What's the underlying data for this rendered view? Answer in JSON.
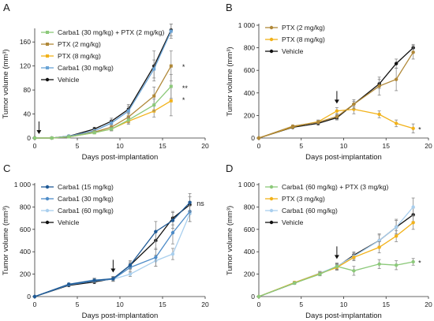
{
  "chart_data": [
    {
      "panel": "A",
      "type": "line",
      "xlabel": "Days post-implantation",
      "ylabel": "Tumor volume (mm³)",
      "xlim": [
        0,
        20
      ],
      "ylim": [
        0,
        180
      ],
      "x_ticks": [
        0,
        5,
        10,
        15,
        20
      ],
      "y_ticks": [
        0,
        40,
        80,
        120,
        160
      ],
      "y_tick_labels": [
        "0",
        "40",
        "80",
        "120",
        "160"
      ],
      "legend_position": "upper-left",
      "arrow_day": 0.5,
      "annotations": [
        {
          "text": "*",
          "x": 17.3,
          "y": 118
        },
        {
          "text": "**",
          "x": 17.3,
          "y": 83
        },
        {
          "text": "*",
          "x": 17.3,
          "y": 63
        }
      ],
      "series": [
        {
          "name": "Carba1 (30 mg/kg) + PTX (2 mg/kg)",
          "color": "#8cc97a",
          "marker": "square",
          "x": [
            0,
            2,
            4,
            7,
            9,
            11,
            14,
            16
          ],
          "y": [
            0,
            0,
            2,
            9,
            15,
            30,
            55,
            86
          ],
          "err": [
            0,
            0,
            1,
            2,
            3,
            5,
            10,
            20
          ]
        },
        {
          "name": "PTX (2 mg/kg)",
          "color": "#b08838",
          "marker": "square",
          "x": [
            0,
            2,
            4,
            7,
            9,
            11,
            14,
            16
          ],
          "y": [
            0,
            0,
            2,
            10,
            18,
            35,
            70,
            120
          ],
          "err": [
            0,
            0,
            1,
            2,
            4,
            7,
            15,
            25
          ]
        },
        {
          "name": "PTX (8 mg/kg)",
          "color": "#f2b21a",
          "marker": "square",
          "x": [
            0,
            2,
            4,
            7,
            9,
            11,
            14,
            16
          ],
          "y": [
            0,
            0,
            2,
            9,
            15,
            28,
            45,
            62
          ],
          "err": [
            0,
            0,
            1,
            2,
            3,
            5,
            10,
            25
          ]
        },
        {
          "name": "Carba1 (30 mg/kg)",
          "color": "#6aa3d5",
          "marker": "square",
          "x": [
            0,
            2,
            4,
            7,
            9,
            11,
            14,
            16
          ],
          "y": [
            0,
            0,
            3,
            12,
            25,
            45,
            115,
            178
          ],
          "err": [
            0,
            0,
            1,
            3,
            5,
            8,
            15,
            12
          ]
        },
        {
          "name": "Vehicle",
          "color": "#111111",
          "marker": "circle",
          "x": [
            0,
            2,
            4,
            7,
            9,
            11,
            14,
            16
          ],
          "y": [
            0,
            0,
            3,
            15,
            28,
            48,
            120,
            180
          ],
          "err": [
            0,
            0,
            1,
            3,
            5,
            8,
            25,
            10
          ]
        }
      ]
    },
    {
      "panel": "B",
      "type": "line",
      "xlabel": "Days post-implantation",
      "ylabel": "Tumor volume (mm³)",
      "xlim": [
        0,
        20
      ],
      "ylim": [
        0,
        1000
      ],
      "x_ticks": [
        0,
        5,
        10,
        15,
        20
      ],
      "y_ticks": [
        0,
        200,
        400,
        600,
        800,
        1000
      ],
      "y_tick_labels": [
        "0",
        "200",
        "400",
        "600",
        "800",
        "1 000"
      ],
      "legend_position": "upper-left",
      "arrow_day": 9.2,
      "annotations": [
        {
          "text": "*",
          "x": 18.8,
          "y": 75
        }
      ],
      "series": [
        {
          "name": "PTX (2 mg/kg)",
          "color": "#b08838",
          "marker": "circle",
          "x": [
            0,
            4,
            7,
            9.2,
            11.2,
            14.2,
            16.2,
            18.2
          ],
          "y": [
            0,
            105,
            140,
            190,
            300,
            460,
            520,
            760
          ],
          "err": [
            0,
            10,
            15,
            25,
            40,
            80,
            100,
            60
          ]
        },
        {
          "name": "PTX (8 mg/kg)",
          "color": "#f2b21a",
          "marker": "circle",
          "x": [
            0,
            4,
            7,
            9.2,
            11.2,
            14.2,
            16.2,
            18.2
          ],
          "y": [
            0,
            100,
            145,
            240,
            255,
            210,
            130,
            85
          ],
          "err": [
            0,
            10,
            15,
            30,
            40,
            30,
            30,
            40
          ]
        },
        {
          "name": "Vehicle",
          "color": "#111111",
          "marker": "circle",
          "x": [
            0,
            4,
            7,
            9.2,
            11.2,
            14.2,
            16.2,
            18.2
          ],
          "y": [
            0,
            95,
            130,
            180,
            300,
            480,
            660,
            800
          ],
          "err": [
            0,
            10,
            15,
            20,
            25,
            40,
            40,
            30
          ]
        }
      ]
    },
    {
      "panel": "C",
      "type": "line",
      "xlabel": "Days post-implantation",
      "ylabel": "Tumor volume (mm³)",
      "xlim": [
        0,
        20
      ],
      "ylim": [
        0,
        1000
      ],
      "x_ticks": [
        0,
        5,
        10,
        15,
        20
      ],
      "y_ticks": [
        0,
        200,
        400,
        600,
        800,
        1000
      ],
      "y_tick_labels": [
        "0",
        "200",
        "400",
        "600",
        "800",
        "1 000"
      ],
      "legend_position": "upper-left",
      "arrow_day": 9.2,
      "annotations": [
        {
          "text": "ns",
          "x": 19.0,
          "y": 830
        }
      ],
      "series": [
        {
          "name": "Carba1 (15 mg/kg)",
          "color": "#1f5a96",
          "marker": "circle",
          "x": [
            0,
            4,
            7,
            9.2,
            11.2,
            14.2,
            16.2,
            18.2
          ],
          "y": [
            0,
            110,
            145,
            160,
            280,
            580,
            680,
            840
          ],
          "err": [
            0,
            10,
            15,
            20,
            40,
            90,
            70,
            80
          ]
        },
        {
          "name": "Carba1 (30 mg/kg)",
          "color": "#4e8cc8",
          "marker": "circle",
          "x": [
            0,
            4,
            7,
            9.2,
            11.2,
            14.2,
            16.2,
            18.2
          ],
          "y": [
            0,
            105,
            140,
            155,
            260,
            350,
            570,
            760
          ],
          "err": [
            0,
            10,
            15,
            20,
            40,
            80,
            100,
            90
          ]
        },
        {
          "name": "Carba1 (60 mg/kg)",
          "color": "#a9cfee",
          "marker": "circle",
          "x": [
            0,
            4,
            7,
            9.2,
            11.2,
            14.2,
            16.2,
            18.2
          ],
          "y": [
            0,
            110,
            150,
            155,
            200,
            320,
            380,
            740
          ],
          "err": [
            0,
            10,
            15,
            15,
            20,
            50,
            50,
            70
          ]
        },
        {
          "name": "Vehicle",
          "color": "#111111",
          "marker": "circle",
          "x": [
            0,
            4,
            7,
            9.2,
            11.2,
            14.2,
            16.2,
            18.2
          ],
          "y": [
            0,
            100,
            130,
            160,
            280,
            500,
            700,
            820
          ],
          "err": [
            0,
            10,
            15,
            20,
            30,
            80,
            60,
            70
          ]
        }
      ]
    },
    {
      "panel": "D",
      "type": "line",
      "xlabel": "Days post-implantation",
      "ylabel": "Tumor volume (mm³)",
      "xlim": [
        0,
        20
      ],
      "ylim": [
        0,
        1000
      ],
      "x_ticks": [
        0,
        5,
        10,
        15,
        20
      ],
      "y_ticks": [
        0,
        200,
        400,
        600,
        800,
        1000
      ],
      "y_tick_labels": [
        "0",
        "200",
        "400",
        "600",
        "800",
        "1 000"
      ],
      "legend_position": "upper-left",
      "arrow_day": 9.2,
      "annotations": [
        {
          "text": "*",
          "x": 18.8,
          "y": 300
        }
      ],
      "series": [
        {
          "name": "Carba1 (60 mg/kg) + PTX (3 mg/kg)",
          "color": "#8cc97a",
          "marker": "circle",
          "x": [
            0,
            4.2,
            7.2,
            9.2,
            11.2,
            14.2,
            16.2,
            18.2
          ],
          "y": [
            0,
            120,
            200,
            270,
            230,
            290,
            280,
            310
          ],
          "err": [
            0,
            10,
            15,
            30,
            40,
            40,
            40,
            30
          ]
        },
        {
          "name": "PTX (3 mg/kg)",
          "color": "#f2b21a",
          "marker": "circle",
          "x": [
            0,
            4.2,
            7.2,
            9.2,
            11.2,
            14.2,
            16.2,
            18.2
          ],
          "y": [
            0,
            125,
            205,
            260,
            350,
            440,
            540,
            660
          ],
          "err": [
            0,
            10,
            15,
            25,
            30,
            50,
            50,
            60
          ]
        },
        {
          "name": "Carba1 (60 mg/kg)",
          "color": "#a9cfee",
          "marker": "circle",
          "x": [
            0,
            4.2,
            7.2,
            9.2,
            11.2,
            14.2,
            16.2,
            18.2
          ],
          "y": [
            0,
            125,
            210,
            270,
            360,
            500,
            620,
            800
          ],
          "err": [
            0,
            10,
            15,
            25,
            30,
            60,
            70,
            80
          ]
        },
        {
          "name": "Vehicle",
          "color": "#111111",
          "marker": "circle",
          "x": [
            0,
            4.2,
            7.2,
            9.2,
            11.2,
            14.2,
            16.2,
            18.2
          ],
          "y": [
            0,
            120,
            205,
            265,
            370,
            500,
            620,
            730
          ],
          "err": [
            0,
            10,
            15,
            25,
            30,
            50,
            60,
            60
          ]
        }
      ]
    }
  ]
}
